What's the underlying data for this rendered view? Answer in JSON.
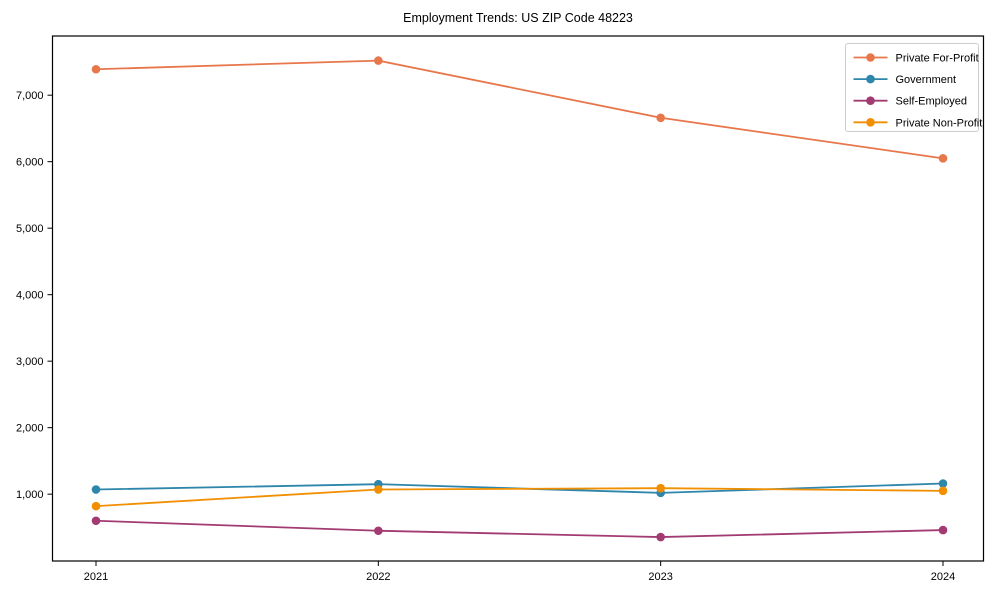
{
  "chart_data": {
    "type": "line",
    "title": "Employment Trends: US ZIP Code 48223",
    "x": [
      2021,
      2022,
      2023,
      2024
    ],
    "xtick_labels": [
      "2021",
      "2022",
      "2023",
      "2024"
    ],
    "yticks": [
      1000,
      2000,
      3000,
      4000,
      5000,
      6000,
      7000
    ],
    "ytick_labels": [
      "1,000",
      "2,000",
      "3,000",
      "4,000",
      "5,000",
      "6,000",
      "7,000"
    ],
    "ylim": [
      -5,
      7890
    ],
    "grid": false,
    "marker": "circle",
    "legend_position": "upper right",
    "series": [
      {
        "name": "Private For-Profit",
        "color": "#E8764B",
        "values": [
          7390,
          7520,
          6660,
          6050
        ]
      },
      {
        "name": "Government",
        "color": "#2E86AB",
        "values": [
          1070,
          1150,
          1020,
          1160
        ]
      },
      {
        "name": "Self-Employed",
        "color": "#A23B72",
        "values": [
          600,
          450,
          355,
          460
        ]
      },
      {
        "name": "Private Non-Profit",
        "color": "#F18F01",
        "values": [
          820,
          1070,
          1090,
          1050
        ]
      }
    ],
    "colors": {
      "spine": "#000000",
      "background": "#ffffff",
      "legend_border": "#cccccc"
    }
  }
}
